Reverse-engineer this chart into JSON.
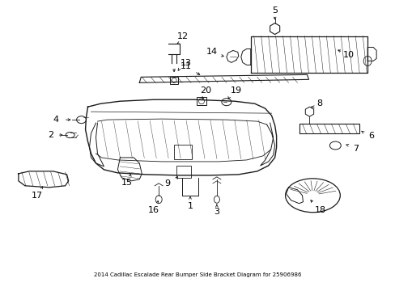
{
  "title": "2014 Cadillac Escalade Rear Bumper Side Bracket Diagram for 25906986",
  "background_color": "#ffffff",
  "line_color": "#1a1a1a",
  "text_color": "#000000",
  "fig_width": 4.89,
  "fig_height": 3.6,
  "dpi": 100
}
